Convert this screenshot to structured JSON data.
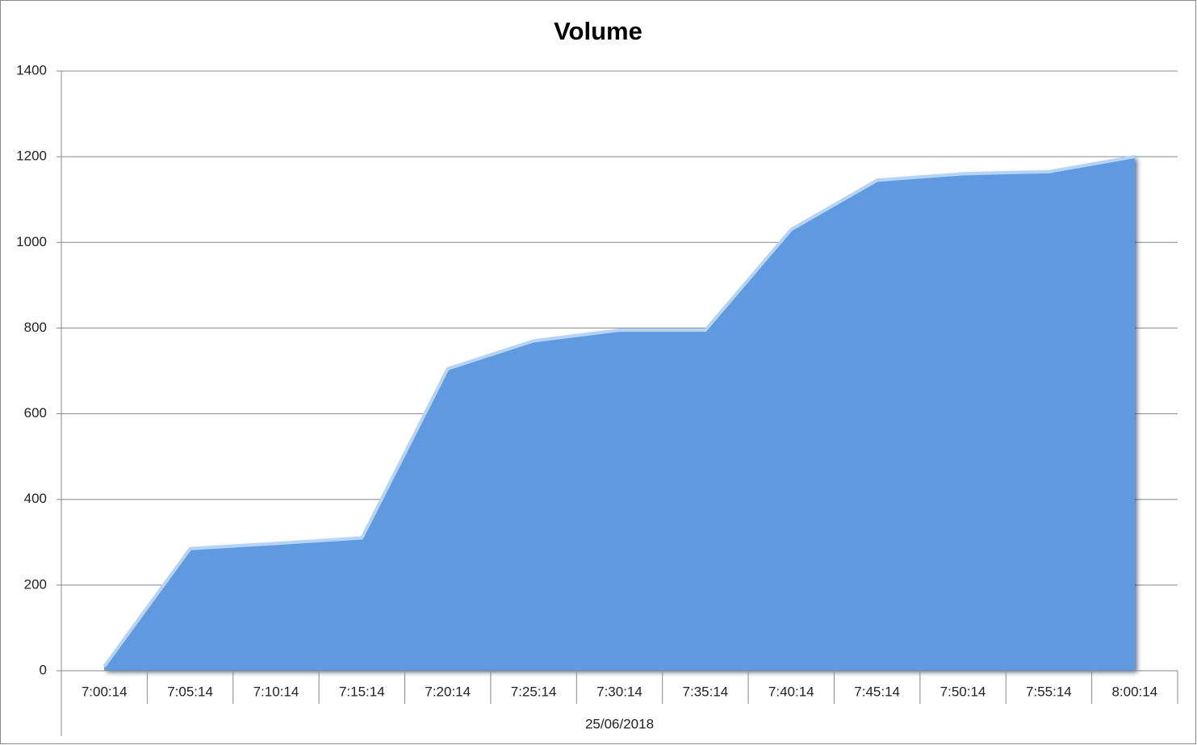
{
  "chart_data": {
    "type": "area",
    "title": "Volume",
    "categories": [
      "7:00:14",
      "7:05:14",
      "7:10:14",
      "7:15:14",
      "7:20:14",
      "7:25:14",
      "7:30:14",
      "7:35:14",
      "7:40:14",
      "7:45:14",
      "7:50:14",
      "7:55:14",
      "8:00:14"
    ],
    "category_group": "25/06/2018",
    "values": [
      10,
      285,
      297,
      310,
      705,
      770,
      795,
      795,
      1030,
      1145,
      1160,
      1165,
      1200
    ],
    "color": "#5e9ae0",
    "ylim": [
      0,
      1400
    ],
    "yticks": [
      0,
      200,
      400,
      600,
      800,
      1000,
      1200,
      1400
    ],
    "grid": true
  }
}
